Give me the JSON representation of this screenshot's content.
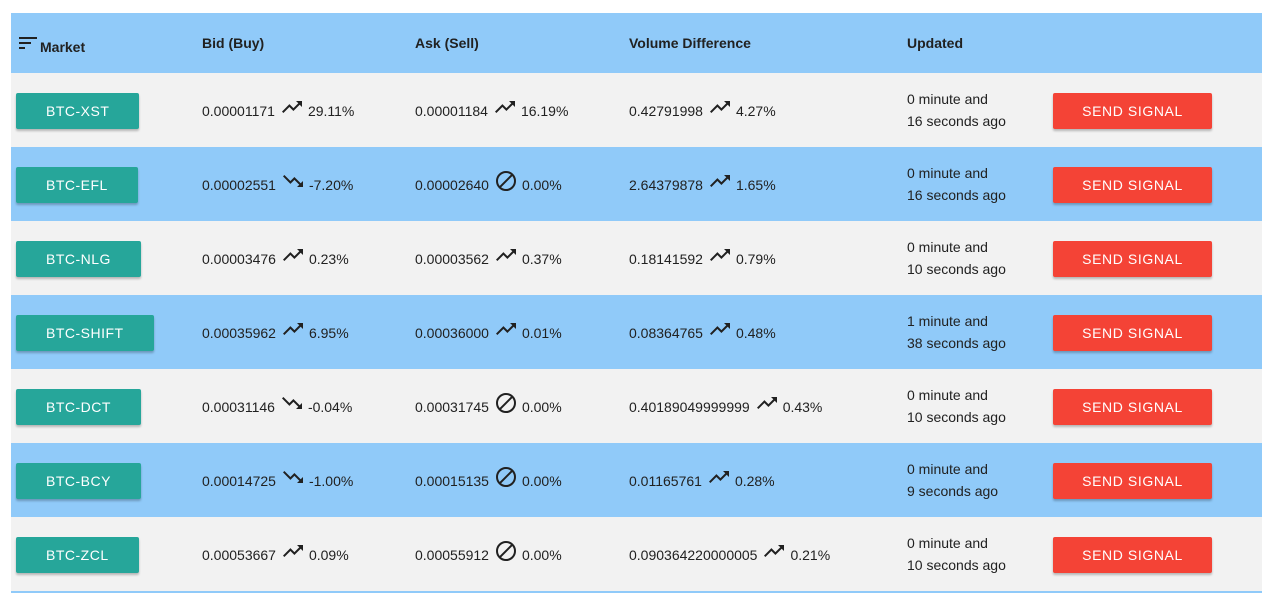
{
  "header": {
    "market": "Market",
    "bid": "Bid (Buy)",
    "ask": "Ask (Sell)",
    "volume": "Volume Difference",
    "updated": "Updated"
  },
  "colors": {
    "header_bg": "#90caf9",
    "row_alt_bg": "#f2f2f2",
    "market_button": "#26a69a",
    "signal_button": "#f44336"
  },
  "rows": [
    {
      "market": "BTC-XST",
      "bid": "0.00001171",
      "bid_trend": "trending-up-icon",
      "bid_pct": "29.11%",
      "ask": "0.00001184",
      "ask_trend": "trending-up-icon",
      "ask_pct": "16.19%",
      "vol": "0.42791998",
      "vol_trend": "trending-up-icon",
      "vol_pct": "4.27%",
      "upd1": "0 minute and",
      "upd2": "16 seconds ago",
      "action": "SEND SIGNAL"
    },
    {
      "market": "BTC-EFL",
      "bid": "0.00002551",
      "bid_trend": "trending-down-icon",
      "bid_pct": "-7.20%",
      "ask": "0.00002640",
      "ask_trend": "no-change-icon",
      "ask_pct": "0.00%",
      "vol": "2.64379878",
      "vol_trend": "trending-up-icon",
      "vol_pct": "1.65%",
      "upd1": "0 minute and",
      "upd2": "16 seconds ago",
      "action": "SEND SIGNAL"
    },
    {
      "market": "BTC-NLG",
      "bid": "0.00003476",
      "bid_trend": "trending-up-icon",
      "bid_pct": "0.23%",
      "ask": "0.00003562",
      "ask_trend": "trending-up-icon",
      "ask_pct": "0.37%",
      "vol": "0.18141592",
      "vol_trend": "trending-up-icon",
      "vol_pct": "0.79%",
      "upd1": "0 minute and",
      "upd2": "10 seconds ago",
      "action": "SEND SIGNAL"
    },
    {
      "market": "BTC-SHIFT",
      "bid": "0.00035962",
      "bid_trend": "trending-up-icon",
      "bid_pct": "6.95%",
      "ask": "0.00036000",
      "ask_trend": "trending-up-icon",
      "ask_pct": "0.01%",
      "vol": "0.08364765",
      "vol_trend": "trending-up-icon",
      "vol_pct": "0.48%",
      "upd1": "1 minute and",
      "upd2": "38 seconds ago",
      "action": "SEND SIGNAL"
    },
    {
      "market": "BTC-DCT",
      "bid": "0.00031146",
      "bid_trend": "trending-down-icon",
      "bid_pct": "-0.04%",
      "ask": "0.00031745",
      "ask_trend": "no-change-icon",
      "ask_pct": "0.00%",
      "vol": "0.40189049999999",
      "vol_trend": "trending-up-icon",
      "vol_pct": "0.43%",
      "upd1": "0 minute and",
      "upd2": "10 seconds ago",
      "action": "SEND SIGNAL"
    },
    {
      "market": "BTC-BCY",
      "bid": "0.00014725",
      "bid_trend": "trending-down-icon",
      "bid_pct": "-1.00%",
      "ask": "0.00015135",
      "ask_trend": "no-change-icon",
      "ask_pct": "0.00%",
      "vol": "0.01165761",
      "vol_trend": "trending-up-icon",
      "vol_pct": "0.28%",
      "upd1": "0 minute and",
      "upd2": "9 seconds ago",
      "action": "SEND SIGNAL"
    },
    {
      "market": "BTC-ZCL",
      "bid": "0.00053667",
      "bid_trend": "trending-up-icon",
      "bid_pct": "0.09%",
      "ask": "0.00055912",
      "ask_trend": "no-change-icon",
      "ask_pct": "0.00%",
      "vol": "0.090364220000005",
      "vol_trend": "trending-up-icon",
      "vol_pct": "0.21%",
      "upd1": "0 minute and",
      "upd2": "10 seconds ago",
      "action": "SEND SIGNAL"
    }
  ]
}
